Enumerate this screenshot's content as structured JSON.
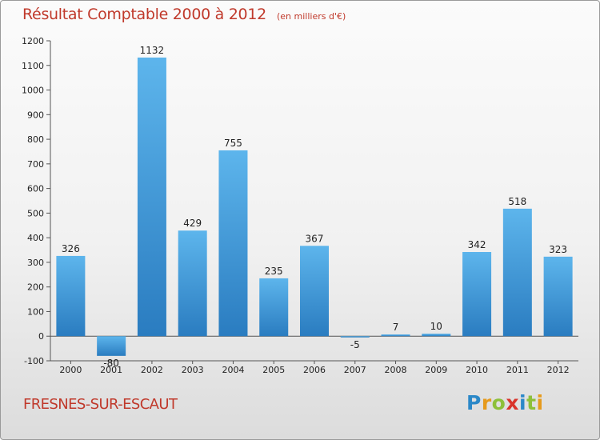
{
  "chart_data": {
    "type": "bar",
    "title": "Résultat Comptable 2000 à 2012",
    "subtitle": "(en milliers d'€)",
    "categories": [
      "2000",
      "2001",
      "2002",
      "2003",
      "2004",
      "2005",
      "2006",
      "2007",
      "2008",
      "2009",
      "2010",
      "2011",
      "2012"
    ],
    "values": [
      326,
      -80,
      1132,
      429,
      755,
      235,
      367,
      -5,
      7,
      10,
      342,
      518,
      323
    ],
    "data_labels": [
      "326",
      "-80",
      "1132",
      "429",
      "755",
      "235",
      "367",
      "-5",
      "7",
      "10",
      "342",
      "518",
      "323"
    ],
    "ylim": [
      -100,
      1200
    ],
    "yticks": [
      -100,
      0,
      100,
      200,
      300,
      400,
      500,
      600,
      700,
      800,
      900,
      1000,
      1100,
      1200
    ],
    "grid": false,
    "colors": {
      "bar_top": "#5db5ec",
      "bar_bottom": "#2a7cc0",
      "accent": "#c0392b"
    }
  },
  "footer": {
    "town": "FRESNES-SUR-ESCAUT"
  },
  "logo": {
    "letters": [
      "P",
      "r",
      "o",
      "x",
      "i",
      "t",
      "i"
    ],
    "colors": [
      "#2b88c8",
      "#e69a1c",
      "#8dc03a",
      "#d9342b",
      "#2b88c8",
      "#8dc03a",
      "#e69a1c"
    ]
  }
}
